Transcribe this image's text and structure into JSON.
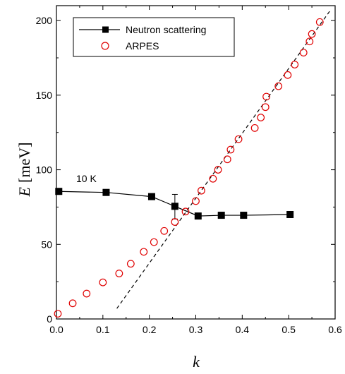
{
  "chart_data": {
    "type": "scatter",
    "xlabel": "k",
    "ylabel": "E",
    "ylabel_unit": "[meV]",
    "xlim": [
      0.0,
      0.6
    ],
    "ylim": [
      0,
      210
    ],
    "x_ticks": [
      "0.0",
      "0.1",
      "0.2",
      "0.3",
      "0.4",
      "0.5",
      "0.6"
    ],
    "y_ticks": [
      "0",
      "50",
      "100",
      "150",
      "200"
    ],
    "grid": false,
    "legend_position": "top-left",
    "annotation": "10 K",
    "series": [
      {
        "name": "Neutron scattering",
        "marker": "filled-square",
        "line": true,
        "color": "#000000",
        "x": [
          0.005,
          0.107,
          0.205,
          0.255,
          0.305,
          0.355,
          0.403,
          0.503
        ],
        "y": [
          85.5,
          84.8,
          82.0,
          75.5,
          69.0,
          69.5,
          69.5,
          70.0
        ],
        "errorbar_index": 3,
        "errorbar_y": [
          67,
          83.5
        ]
      },
      {
        "name": "ARPES",
        "marker": "open-circle",
        "line": false,
        "color": "#e00000",
        "x": [
          0.003,
          0.035,
          0.065,
          0.1,
          0.135,
          0.16,
          0.188,
          0.21,
          0.232,
          0.255,
          0.278,
          0.3,
          0.312,
          0.337,
          0.348,
          0.368,
          0.375,
          0.392,
          0.427,
          0.44,
          0.45,
          0.452,
          0.478,
          0.498,
          0.513,
          0.532,
          0.545,
          0.55,
          0.567
        ],
        "y": [
          3.5,
          10.5,
          17.0,
          24.5,
          30.5,
          37.0,
          45.0,
          51.5,
          59.0,
          65.0,
          72.0,
          79.0,
          86.0,
          94.0,
          100.0,
          107.0,
          113.5,
          120.5,
          128.0,
          135.0,
          142.0,
          149.0,
          156.0,
          163.5,
          170.5,
          178.5,
          186.0,
          191.0,
          199.0
        ]
      },
      {
        "name": "",
        "type": "dashed-line",
        "color": "#000000",
        "x": [
          0.13,
          0.59
        ],
        "y": [
          7.0,
          207.0
        ]
      }
    ]
  }
}
